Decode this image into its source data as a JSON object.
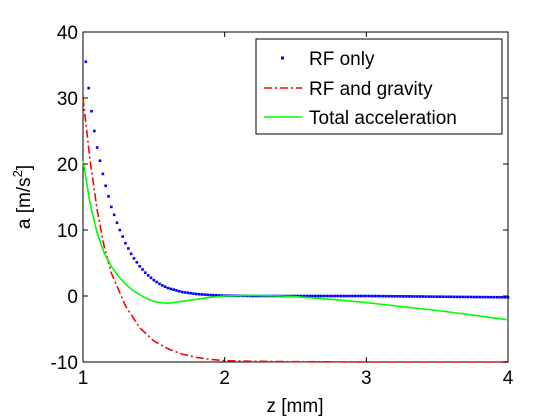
{
  "chart_data": {
    "type": "line",
    "xlabel": "z [mm]",
    "ylabel_parts": [
      "a [m/s",
      "2",
      "]"
    ],
    "xlim": [
      1,
      4
    ],
    "ylim": [
      -10,
      40
    ],
    "xticks": [
      1,
      2,
      3,
      4
    ],
    "yticks": [
      -10,
      0,
      10,
      20,
      30,
      40
    ],
    "grid": false,
    "legend_position": "top-right",
    "series": [
      {
        "name": "RF only",
        "style": "dots",
        "color": "#0000ff",
        "x": [
          1.02,
          1.04,
          1.06,
          1.08,
          1.1,
          1.15,
          1.2,
          1.25,
          1.3,
          1.35,
          1.4,
          1.45,
          1.5,
          1.55,
          1.6,
          1.7,
          1.8,
          1.9,
          2.0,
          2.2,
          2.5,
          3.0,
          3.5,
          4.0
        ],
        "y": [
          35.5,
          31.5,
          28.0,
          25.0,
          22.5,
          17.5,
          13.5,
          10.5,
          8.0,
          6.0,
          4.5,
          3.3,
          2.4,
          1.7,
          1.2,
          0.6,
          0.3,
          0.15,
          0.05,
          0.0,
          0.0,
          0.0,
          -0.1,
          -0.2
        ]
      },
      {
        "name": "RF and gravity",
        "style": "dashdot",
        "color": "#ff0000",
        "x": [
          1.0,
          1.05,
          1.1,
          1.15,
          1.2,
          1.3,
          1.4,
          1.5,
          1.6,
          1.7,
          1.8,
          1.9,
          2.0,
          2.2,
          2.5,
          3.0,
          3.5,
          4.0
        ],
        "y": [
          30.0,
          20.5,
          13.0,
          7.5,
          3.5,
          -1.5,
          -4.8,
          -6.8,
          -8.0,
          -8.8,
          -9.3,
          -9.6,
          -9.8,
          -9.9,
          -9.95,
          -10.0,
          -10.0,
          -10.0
        ]
      },
      {
        "name": "Total acceleration",
        "style": "solid",
        "color": "#00ff00",
        "x": [
          1.0,
          1.05,
          1.1,
          1.15,
          1.2,
          1.25,
          1.3,
          1.35,
          1.4,
          1.45,
          1.5,
          1.55,
          1.6,
          1.7,
          1.8,
          1.9,
          2.0,
          2.1,
          2.2,
          2.3,
          2.4,
          2.5,
          2.75,
          3.0,
          3.25,
          3.5,
          3.75,
          4.0
        ],
        "y": [
          20.5,
          14.0,
          9.5,
          6.5,
          4.5,
          3.0,
          1.8,
          0.9,
          0.2,
          -0.4,
          -0.8,
          -1.0,
          -1.1,
          -0.8,
          -0.5,
          -0.2,
          0.0,
          0.05,
          0.1,
          0.05,
          0.0,
          -0.1,
          -0.5,
          -1.0,
          -1.6,
          -2.2,
          -2.9,
          -3.6
        ]
      }
    ]
  }
}
